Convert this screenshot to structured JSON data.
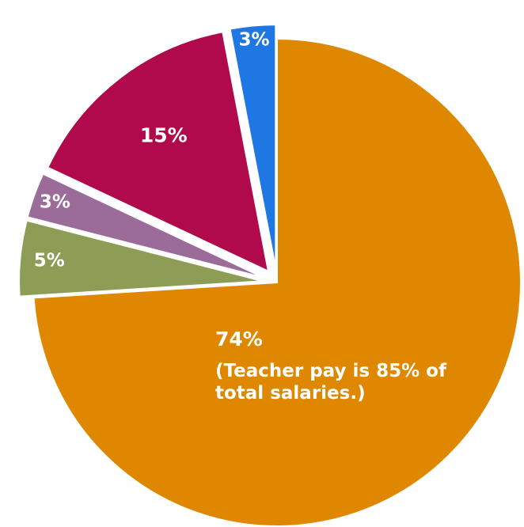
{
  "chart_data": {
    "type": "pie",
    "categories": [
      "",
      "",
      "",
      "",
      ""
    ],
    "values": [
      74,
      5,
      3,
      15,
      3
    ],
    "labels": [
      "74%",
      "5%",
      "3%",
      "15%",
      "3%"
    ],
    "colors": [
      "#e08700",
      "#8e9d55",
      "#9b6b9a",
      "#b10a4c",
      "#1f77e3"
    ],
    "exploded": [
      false,
      true,
      true,
      true,
      true
    ],
    "annotation_lines": [
      "(Teacher pay is 85% of",
      "total salaries.)"
    ],
    "title": "",
    "legend": "none"
  }
}
